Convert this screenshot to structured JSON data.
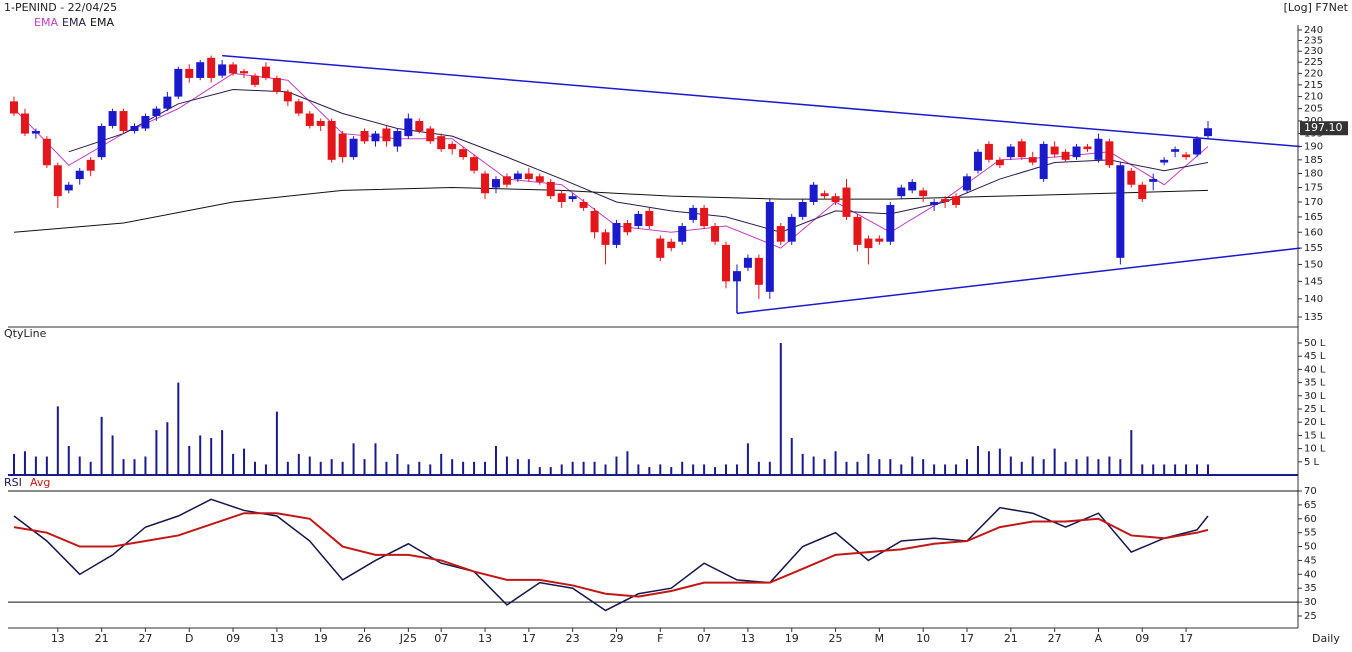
{
  "chart_data": {
    "type": "candlestick",
    "title": "1-PENIND - 22/04/25",
    "scale_label": "[Log] F7Net",
    "period_label": "Daily",
    "log_scale": true,
    "up_color": "#1a1acb",
    "down_color": "#e3161b",
    "price": {
      "open": [
        208,
        203,
        195,
        193,
        183,
        174,
        178,
        185,
        186,
        198,
        204,
        196,
        197,
        202,
        205,
        210,
        222,
        218,
        227,
        219,
        224,
        221,
        219,
        223,
        218,
        212,
        208,
        203,
        200,
        200,
        195,
        186,
        196,
        192,
        197,
        190,
        194,
        200,
        197,
        194,
        191,
        189,
        186,
        180,
        175,
        179,
        178,
        180,
        179,
        177,
        173,
        171,
        170,
        167,
        160,
        156,
        163,
        162,
        167,
        158,
        157,
        157,
        164,
        168,
        162,
        156,
        145,
        149,
        152,
        142,
        162,
        157,
        165,
        170,
        173,
        172,
        175,
        165,
        158,
        158,
        157,
        172,
        174,
        174,
        169,
        171,
        172,
        174,
        181,
        191,
        185,
        186,
        192,
        186,
        178,
        190,
        188,
        186,
        190,
        185,
        192,
        152,
        181,
        176,
        177,
        184,
        188,
        187,
        187,
        194
      ],
      "high": [
        210,
        205,
        197,
        194,
        184,
        177,
        182,
        186,
        199,
        205,
        205,
        199,
        203,
        206,
        212,
        223,
        224,
        226,
        228,
        226,
        225,
        222,
        220,
        225,
        219,
        213,
        209,
        204,
        201,
        201,
        196,
        194,
        197,
        196,
        198,
        197,
        203,
        201,
        198,
        195,
        192,
        190,
        187,
        181,
        179,
        180,
        181,
        182,
        180,
        178,
        174,
        173,
        171,
        168,
        161,
        164,
        164,
        167,
        168,
        159,
        158,
        163,
        169,
        169,
        163,
        157,
        150,
        153,
        153,
        171,
        163,
        166,
        171,
        177,
        174,
        173,
        178,
        166,
        159,
        159,
        170,
        176,
        178,
        175,
        171,
        172,
        173,
        180,
        189,
        192,
        186,
        191,
        193,
        188,
        192,
        192,
        189,
        191,
        191,
        195,
        193,
        184,
        182,
        177,
        180,
        186,
        190,
        188,
        194,
        200
      ],
      "low": [
        202,
        194,
        193,
        182,
        168,
        173,
        176,
        179,
        185,
        197,
        195,
        195,
        196,
        200,
        204,
        209,
        216,
        217,
        216,
        218,
        219,
        218,
        214,
        217,
        211,
        206,
        202,
        197,
        196,
        184,
        184,
        185,
        191,
        190,
        190,
        188,
        193,
        195,
        191,
        188,
        187,
        185,
        180,
        171,
        173,
        175,
        177,
        177,
        176,
        171,
        168,
        170,
        167,
        158,
        150,
        155,
        159,
        161,
        161,
        151,
        154,
        156,
        163,
        161,
        156,
        143,
        144,
        148,
        140,
        140,
        156,
        156,
        164,
        169,
        171,
        169,
        164,
        154,
        150,
        156,
        156,
        171,
        173,
        170,
        167,
        168,
        168,
        173,
        180,
        184,
        182,
        185,
        185,
        183,
        177,
        186,
        184,
        185,
        188,
        184,
        182,
        150,
        175,
        170,
        174,
        183,
        186,
        185,
        186,
        193
      ],
      "close": [
        203,
        195,
        196,
        183,
        172,
        176,
        181,
        181,
        198,
        204,
        196,
        198,
        202,
        205,
        210,
        222,
        218,
        225,
        218,
        224,
        220,
        220,
        215,
        218,
        212,
        208,
        203,
        198,
        198,
        185,
        186,
        193,
        192,
        195,
        192,
        196,
        201,
        196,
        192,
        189,
        189,
        186,
        181,
        173,
        178,
        176,
        180,
        178,
        177,
        172,
        170,
        172,
        168,
        160,
        156,
        163,
        160,
        166,
        162,
        152,
        155,
        162,
        168,
        162,
        157,
        145,
        148,
        152,
        144,
        170,
        157,
        165,
        170,
        176,
        172,
        170,
        165,
        156,
        155,
        157,
        169,
        175,
        177,
        172,
        170,
        170,
        169,
        179,
        188,
        185,
        183,
        190,
        186,
        184,
        191,
        187,
        185,
        190,
        189,
        193,
        183,
        183,
        176,
        171,
        178,
        185,
        189,
        186,
        193,
        197.1
      ]
    },
    "last_price_label": "197.10",
    "ema": [
      {
        "name": "EMA",
        "color": "#c040c0",
        "x": [
          0,
          5,
          10,
          15,
          20,
          25,
          30,
          35,
          40,
          45,
          50,
          55,
          60,
          65,
          70,
          75,
          80,
          85,
          90,
          95,
          100,
          105,
          109
        ],
        "values": [
          205,
          183,
          195,
          205,
          220,
          217,
          195,
          193,
          193,
          178,
          176,
          162,
          160,
          162,
          155,
          170,
          160,
          171,
          185,
          186,
          188,
          176,
          190
        ]
      },
      {
        "name": "EMA",
        "color": "#2a1a4a",
        "x": [
          5,
          10,
          15,
          20,
          25,
          30,
          35,
          40,
          45,
          50,
          55,
          60,
          65,
          70,
          75,
          80,
          85,
          90,
          95,
          100,
          105,
          109
        ],
        "values": [
          188,
          195,
          207,
          213,
          212,
          203,
          197,
          194,
          186,
          178,
          170,
          167,
          165,
          160,
          167,
          166,
          170,
          178,
          184,
          185,
          181,
          184
        ]
      },
      {
        "name": "EMA",
        "color": "#111111",
        "x": [
          0,
          10,
          20,
          30,
          40,
          50,
          60,
          70,
          80,
          90,
          100,
          109
        ],
        "values": [
          160,
          163,
          170,
          174,
          175,
          174,
          172,
          171,
          171,
          172,
          173,
          174
        ]
      }
    ],
    "trendlines": [
      {
        "x": [
          19,
          117.4
        ],
        "values": [
          228,
          190
        ]
      },
      {
        "x": [
          66,
          117.4
        ],
        "values": [
          136,
          155
        ]
      },
      {
        "x": [
          66,
          66
        ],
        "values": [
          136,
          145
        ]
      }
    ],
    "ylim": [
      135,
      240
    ],
    "yticks": [
      135,
      140,
      145,
      150,
      155,
      160,
      165,
      170,
      175,
      180,
      185,
      190,
      195,
      200,
      205,
      210,
      215,
      220,
      225,
      230,
      235,
      240
    ],
    "xlim": [
      -0.5,
      117.4
    ],
    "xticks": [
      {
        "value": 4,
        "label": "13"
      },
      {
        "value": 8,
        "label": "21"
      },
      {
        "value": 12,
        "label": "27"
      },
      {
        "value": 16,
        "label": "D"
      },
      {
        "value": 20,
        "label": "09"
      },
      {
        "value": 24,
        "label": "13"
      },
      {
        "value": 28,
        "label": "19"
      },
      {
        "value": 32,
        "label": "26"
      },
      {
        "value": 36,
        "label": "J25"
      },
      {
        "value": 39,
        "label": "07"
      },
      {
        "value": 43,
        "label": "13"
      },
      {
        "value": 47,
        "label": "17"
      },
      {
        "value": 51,
        "label": "23"
      },
      {
        "value": 55,
        "label": "29"
      },
      {
        "value": 59,
        "label": "F"
      },
      {
        "value": 63,
        "label": "07"
      },
      {
        "value": 67,
        "label": "13"
      },
      {
        "value": 71,
        "label": "19"
      },
      {
        "value": 75,
        "label": "25"
      },
      {
        "value": 79,
        "label": "M"
      },
      {
        "value": 83,
        "label": "10"
      },
      {
        "value": 87,
        "label": "17"
      },
      {
        "value": 91,
        "label": "21"
      },
      {
        "value": 95,
        "label": "27"
      },
      {
        "value": 99,
        "label": "A"
      },
      {
        "value": 103,
        "label": "09"
      },
      {
        "value": 107,
        "label": "17"
      }
    ],
    "volume": {
      "name": "QtyLine",
      "color": "#1a1a8a",
      "values": [
        8,
        9,
        7,
        7,
        26,
        11,
        7,
        5,
        22,
        15,
        6,
        6,
        7,
        17,
        20,
        35,
        11,
        15,
        14,
        17,
        8,
        10,
        5,
        4,
        24,
        5,
        8,
        7,
        5,
        6,
        5,
        12,
        6,
        12,
        5,
        8,
        4,
        5,
        4,
        8,
        6,
        5,
        5,
        5,
        11,
        7,
        6,
        6,
        3,
        3,
        4,
        5,
        5,
        5,
        4,
        7,
        9,
        4,
        3,
        4,
        3,
        5,
        4,
        4,
        3,
        4,
        4,
        12,
        5,
        5,
        50,
        14,
        8,
        7,
        6,
        9,
        5,
        5,
        8,
        6,
        6,
        4,
        7,
        6,
        4,
        4,
        4,
        6,
        11,
        9,
        10,
        7,
        5,
        7,
        6,
        10,
        5,
        6,
        7,
        6,
        7,
        6,
        17,
        4,
        4,
        4,
        4,
        4,
        4,
        4
      ],
      "ylim": [
        0,
        50
      ],
      "yticks": [
        {
          "value": 5,
          "label": "5 L"
        },
        {
          "value": 10,
          "label": "10 L"
        },
        {
          "value": 15,
          "label": "15 L"
        },
        {
          "value": 20,
          "label": "20 L"
        },
        {
          "value": 25,
          "label": "25 L"
        },
        {
          "value": 30,
          "label": "30 L"
        },
        {
          "value": 35,
          "label": "35 L"
        },
        {
          "value": 40,
          "label": "40 L"
        },
        {
          "value": 45,
          "label": "45 L"
        },
        {
          "value": 50,
          "label": "50 L"
        }
      ]
    },
    "rsi": {
      "series": [
        {
          "name": "RSI",
          "color": "#16164a",
          "x": [
            0,
            3,
            6,
            9,
            12,
            15,
            18,
            21,
            24,
            27,
            30,
            33,
            36,
            39,
            42,
            45,
            48,
            51,
            54,
            57,
            60,
            63,
            66,
            69,
            72,
            75,
            78,
            81,
            84,
            87,
            90,
            93,
            96,
            99,
            102,
            105,
            108,
            109
          ],
          "values": [
            61,
            52,
            40,
            47,
            57,
            61,
            67,
            63,
            61,
            52,
            38,
            45,
            51,
            44,
            41,
            29,
            37,
            35,
            27,
            33,
            35,
            44,
            38,
            37,
            50,
            55,
            45,
            52,
            53,
            52,
            64,
            62,
            57,
            62,
            48,
            53,
            56,
            61
          ]
        },
        {
          "name": "Avg",
          "color": "#c01818",
          "x": [
            0,
            3,
            6,
            9,
            12,
            15,
            18,
            21,
            24,
            27,
            30,
            33,
            36,
            39,
            42,
            45,
            48,
            51,
            54,
            57,
            60,
            63,
            66,
            69,
            72,
            75,
            78,
            81,
            84,
            87,
            90,
            93,
            96,
            99,
            102,
            105,
            108,
            109
          ],
          "values": [
            57,
            55,
            50,
            50,
            52,
            54,
            58,
            62,
            62,
            60,
            50,
            47,
            47,
            45,
            41,
            38,
            38,
            36,
            33,
            32,
            34,
            37,
            37,
            37,
            42,
            47,
            48,
            49,
            51,
            52,
            57,
            59,
            59,
            60,
            54,
            53,
            55,
            56
          ]
        }
      ],
      "ylim": [
        25,
        70
      ],
      "yticks": [
        25,
        30,
        35,
        40,
        45,
        50,
        55,
        60,
        65,
        70
      ],
      "hlines": [
        30,
        70
      ]
    }
  }
}
